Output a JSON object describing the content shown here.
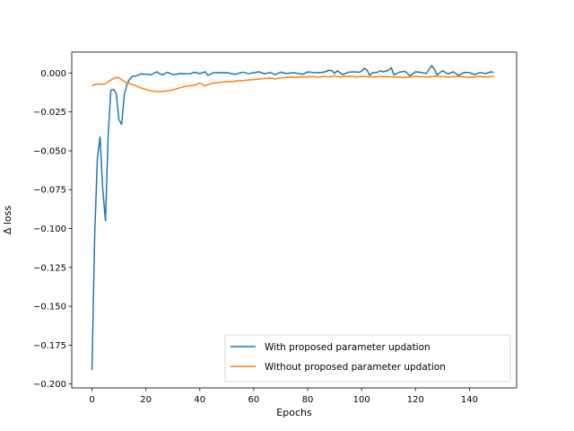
{
  "chart_data": {
    "type": "line",
    "xlabel": "Epochs",
    "ylabel": "Δ loss",
    "xlim": [
      -7.5,
      157.5
    ],
    "ylim": [
      -0.2025,
      0.0135
    ],
    "xticks": [
      0,
      20,
      40,
      60,
      80,
      100,
      120,
      140
    ],
    "yticks": [
      -0.2,
      -0.175,
      -0.15,
      -0.125,
      -0.1,
      -0.075,
      -0.05,
      -0.025,
      0.0
    ],
    "ytick_labels": [
      "−0.200",
      "−0.175",
      "−0.150",
      "−0.125",
      "−0.100",
      "−0.075",
      "−0.050",
      "−0.025",
      "0.000"
    ],
    "grid": false,
    "legend_position": "lower-right",
    "series": [
      {
        "name": "With proposed parameter updation",
        "color": "#1f77b4",
        "points": [
          [
            0,
            -0.191
          ],
          [
            1,
            -0.105
          ],
          [
            2,
            -0.055
          ],
          [
            3,
            -0.041
          ],
          [
            4,
            -0.075
          ],
          [
            5,
            -0.095
          ],
          [
            6,
            -0.04
          ],
          [
            7,
            -0.011
          ],
          [
            8,
            -0.0105
          ],
          [
            9,
            -0.013
          ],
          [
            10,
            -0.03
          ],
          [
            11,
            -0.033
          ],
          [
            12,
            -0.014
          ],
          [
            13,
            -0.007
          ],
          [
            14,
            -0.004
          ],
          [
            15,
            -0.002
          ],
          [
            16,
            -0.002
          ],
          [
            17,
            -0.0015
          ],
          [
            18,
            -0.0005
          ],
          [
            20,
            -0.0008
          ],
          [
            22,
            -0.001
          ],
          [
            24,
            0.0008
          ],
          [
            26,
            -0.0012
          ],
          [
            28,
            0.0005
          ],
          [
            30,
            -0.001
          ],
          [
            33,
            -0.0003
          ],
          [
            36,
            -0.0006
          ],
          [
            38,
            0.0005
          ],
          [
            40,
            -0.0003
          ],
          [
            42,
            0.0008
          ],
          [
            43,
            -0.0015
          ],
          [
            45,
            0.0002
          ],
          [
            50,
            0.0003
          ],
          [
            53,
            -0.0008
          ],
          [
            56,
            0.0006
          ],
          [
            58,
            -0.0004
          ],
          [
            60,
            0.0002
          ],
          [
            62,
            0.0008
          ],
          [
            64,
            -0.0005
          ],
          [
            66,
            0.0004
          ],
          [
            68,
            -0.001
          ],
          [
            70,
            0.0006
          ],
          [
            72,
            -0.0003
          ],
          [
            75,
            0.0002
          ],
          [
            78,
            -0.0008
          ],
          [
            80,
            0.0007
          ],
          [
            83,
            0.0002
          ],
          [
            86,
            0.0005
          ],
          [
            88,
            0.0018
          ],
          [
            89,
            0.0015
          ],
          [
            90,
            -0.0002
          ],
          [
            91,
            0.0015
          ],
          [
            93,
            -0.001
          ],
          [
            95,
            0.0005
          ],
          [
            97,
            0.0008
          ],
          [
            99,
            0.0005
          ],
          [
            100,
            0.0012
          ],
          [
            101,
            0.003
          ],
          [
            102,
            0.002
          ],
          [
            103,
            -0.0015
          ],
          [
            104,
            0.0002
          ],
          [
            106,
            0.0005
          ],
          [
            107,
            0.0015
          ],
          [
            108,
            0.0008
          ],
          [
            110,
            0.0018
          ],
          [
            111,
            0.0035
          ],
          [
            112,
            -0.0012
          ],
          [
            114,
            0.0005
          ],
          [
            116,
            0.0012
          ],
          [
            118,
            -0.0018
          ],
          [
            120,
            0.0008
          ],
          [
            122,
            0.0004
          ],
          [
            124,
            -0.0003
          ],
          [
            126,
            0.0048
          ],
          [
            127,
            0.0025
          ],
          [
            128,
            -0.0012
          ],
          [
            130,
            0.0015
          ],
          [
            132,
            -0.0005
          ],
          [
            134,
            0.0008
          ],
          [
            136,
            -0.0015
          ],
          [
            138,
            0.0004
          ],
          [
            140,
            0.0003
          ],
          [
            142,
            -0.001
          ],
          [
            144,
            0.0003
          ],
          [
            146,
            -0.0003
          ],
          [
            148,
            0.0008
          ],
          [
            149,
            0.0004
          ]
        ]
      },
      {
        "name": "Without proposed parameter updation",
        "color": "#ff7f0e",
        "points": [
          [
            0,
            -0.008
          ],
          [
            2,
            -0.007
          ],
          [
            4,
            -0.0072
          ],
          [
            5,
            -0.0068
          ],
          [
            7,
            -0.0045
          ],
          [
            8,
            -0.0035
          ],
          [
            9,
            -0.0028
          ],
          [
            10,
            -0.003
          ],
          [
            12,
            -0.0055
          ],
          [
            14,
            -0.0068
          ],
          [
            16,
            -0.008
          ],
          [
            18,
            -0.0095
          ],
          [
            20,
            -0.0105
          ],
          [
            22,
            -0.0115
          ],
          [
            25,
            -0.012
          ],
          [
            28,
            -0.0115
          ],
          [
            30,
            -0.0108
          ],
          [
            32,
            -0.0098
          ],
          [
            34,
            -0.0088
          ],
          [
            36,
            -0.0082
          ],
          [
            38,
            -0.0078
          ],
          [
            40,
            -0.0065
          ],
          [
            42,
            -0.0082
          ],
          [
            44,
            -0.0068
          ],
          [
            46,
            -0.0062
          ],
          [
            48,
            -0.006
          ],
          [
            50,
            -0.0055
          ],
          [
            52,
            -0.0055
          ],
          [
            54,
            -0.005
          ],
          [
            56,
            -0.0048
          ],
          [
            58,
            -0.0045
          ],
          [
            60,
            -0.0042
          ],
          [
            62,
            -0.0038
          ],
          [
            64,
            -0.0035
          ],
          [
            66,
            -0.0032
          ],
          [
            68,
            -0.0038
          ],
          [
            70,
            -0.003
          ],
          [
            72,
            -0.0028
          ],
          [
            74,
            -0.0025
          ],
          [
            76,
            -0.0028
          ],
          [
            78,
            -0.0024
          ],
          [
            80,
            -0.0025
          ],
          [
            82,
            -0.0022
          ],
          [
            84,
            -0.0028
          ],
          [
            86,
            -0.0022
          ],
          [
            88,
            -0.0025
          ],
          [
            90,
            -0.0018
          ],
          [
            92,
            -0.0025
          ],
          [
            94,
            -0.0022
          ],
          [
            96,
            -0.002
          ],
          [
            98,
            -0.0025
          ],
          [
            100,
            -0.0022
          ],
          [
            104,
            -0.0025
          ],
          [
            108,
            -0.0022
          ],
          [
            112,
            -0.0025
          ],
          [
            116,
            -0.0028
          ],
          [
            120,
            -0.0022
          ],
          [
            124,
            -0.0025
          ],
          [
            128,
            -0.002
          ],
          [
            132,
            -0.0025
          ],
          [
            136,
            -0.0022
          ],
          [
            140,
            -0.0028
          ],
          [
            144,
            -0.0022
          ],
          [
            146,
            -0.0025
          ],
          [
            149,
            -0.0022
          ]
        ]
      }
    ]
  }
}
